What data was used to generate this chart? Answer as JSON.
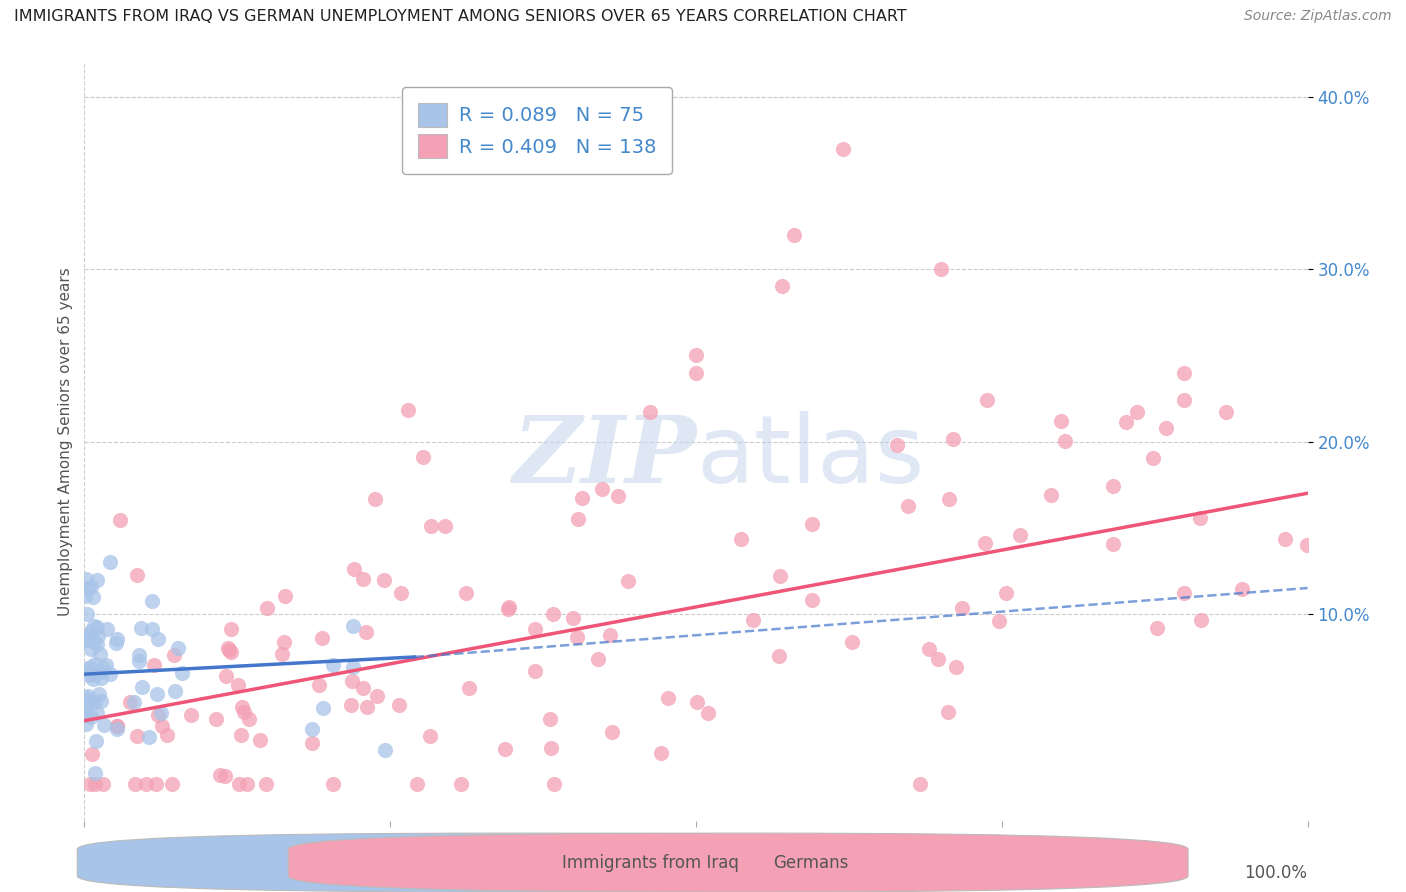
{
  "title": "IMMIGRANTS FROM IRAQ VS GERMAN UNEMPLOYMENT AMONG SENIORS OVER 65 YEARS CORRELATION CHART",
  "source": "Source: ZipAtlas.com",
  "ylabel": "Unemployment Among Seniors over 65 years",
  "x_range": [
    0.0,
    1.0
  ],
  "y_range": [
    -0.02,
    0.42
  ],
  "legend1_label": "Immigrants from Iraq",
  "legend2_label": "Germans",
  "R1": 0.089,
  "N1": 75,
  "R2": 0.409,
  "N2": 138,
  "color_blue": "#A8C4E8",
  "color_pink": "#F4A0B5",
  "color_blue_line": "#4477CC",
  "color_pink_line": "#EE5577",
  "color_blue_text": "#4488CC",
  "background_color": "#FFFFFF",
  "seed": 12345
}
